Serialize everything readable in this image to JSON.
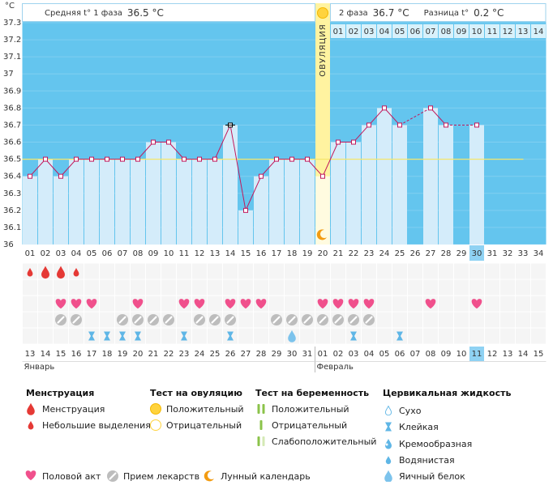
{
  "y_axis": {
    "unit": "°C",
    "ticks": [
      37.3,
      37.2,
      37.1,
      37,
      36.9,
      36.8,
      36.7,
      36.6,
      36.5,
      36.4,
      36.3,
      36.2,
      36.1,
      36
    ]
  },
  "header": {
    "phase1_label": "Средняя t° 1 фаза",
    "phase1_value": "36.5 °C",
    "phase2_label": "2 фаза",
    "phase2_value": "36.7 °C",
    "diff_label": "Разница t°",
    "diff_value": "0.2 °C",
    "ovulation_label": "ОВУЛЯЦИЯ"
  },
  "ovulation_day": 20,
  "selected_day": 30,
  "cover_line": 36.5,
  "post_ovulation_days": [
    "01",
    "02",
    "03",
    "04",
    "05",
    "06",
    "07",
    "08",
    "09",
    "10",
    "11",
    "12",
    "13",
    "14"
  ],
  "cycle_days": [
    "01",
    "02",
    "03",
    "04",
    "05",
    "06",
    "07",
    "08",
    "09",
    "10",
    "11",
    "12",
    "13",
    "14",
    "15",
    "16",
    "17",
    "18",
    "19",
    "20",
    "21",
    "22",
    "23",
    "24",
    "25",
    "26",
    "27",
    "28",
    "29",
    "30",
    "31",
    "32",
    "33",
    "34"
  ],
  "temperatures": [
    36.4,
    36.5,
    36.4,
    36.5,
    36.5,
    36.5,
    36.5,
    36.5,
    36.6,
    36.6,
    36.5,
    36.5,
    36.5,
    36.7,
    36.2,
    36.4,
    36.5,
    36.5,
    36.5,
    36.4,
    36.6,
    36.6,
    36.7,
    36.8,
    36.7,
    null,
    36.8,
    36.7,
    null,
    36.7,
    null,
    null,
    null,
    null
  ],
  "black_marker_days": [
    14
  ],
  "menstruation": [
    {
      "day": 1,
      "type": "light"
    },
    {
      "day": 2,
      "type": "heavy"
    },
    {
      "day": 3,
      "type": "heavy"
    },
    {
      "day": 4,
      "type": "light"
    }
  ],
  "intercourse_days": [
    3,
    4,
    5,
    8,
    11,
    12,
    14,
    15,
    16,
    20,
    21,
    22,
    23,
    27,
    30
  ],
  "medication_days": [
    3,
    4,
    7,
    8,
    9,
    10,
    12,
    13,
    14,
    17,
    18,
    19,
    20,
    21,
    22,
    23
  ],
  "cervical_fluid": [
    {
      "day": 5,
      "type": "sticky"
    },
    {
      "day": 6,
      "type": "sticky"
    },
    {
      "day": 7,
      "type": "sticky"
    },
    {
      "day": 8,
      "type": "sticky"
    },
    {
      "day": 11,
      "type": "sticky"
    },
    {
      "day": 14,
      "type": "sticky"
    },
    {
      "day": 18,
      "type": "egg_white"
    },
    {
      "day": 22,
      "type": "sticky"
    },
    {
      "day": 25,
      "type": "sticky"
    }
  ],
  "dates": [
    "13",
    "14",
    "15",
    "16",
    "17",
    "18",
    "19",
    "20",
    "21",
    "22",
    "23",
    "24",
    "25",
    "26",
    "27",
    "28",
    "29",
    "30",
    "31",
    "01",
    "02",
    "03",
    "04",
    "05",
    "06",
    "07",
    "08",
    "09",
    "10",
    "11",
    "12",
    "13",
    "14",
    "15"
  ],
  "weekend_indices": [
    3,
    4,
    10,
    11,
    17,
    18,
    24,
    25,
    31,
    32
  ],
  "months": [
    {
      "label": "Январь",
      "start": 0
    },
    {
      "label": "Февраль",
      "start": 19
    }
  ],
  "legend": {
    "menstruation": {
      "title": "Менструация",
      "items": [
        "Менструация",
        "Небольшие выделения"
      ]
    },
    "ovulation_test": {
      "title": "Тест на овуляцию",
      "items": [
        "Положительный",
        "Отрицательный"
      ]
    },
    "pregnancy_test": {
      "title": "Тест на беременность",
      "items": [
        "Положительный",
        "Отрицательный",
        "Слабоположительный"
      ]
    },
    "cervical_fluid": {
      "title": "Цервикальная жидкость",
      "items": [
        "Сухо",
        "Клейкая",
        "Кремообразная",
        "Водянистая",
        "Яичный белок"
      ]
    },
    "other": [
      "Половой акт",
      "Прием лекарств",
      "Лунный календарь"
    ]
  }
}
